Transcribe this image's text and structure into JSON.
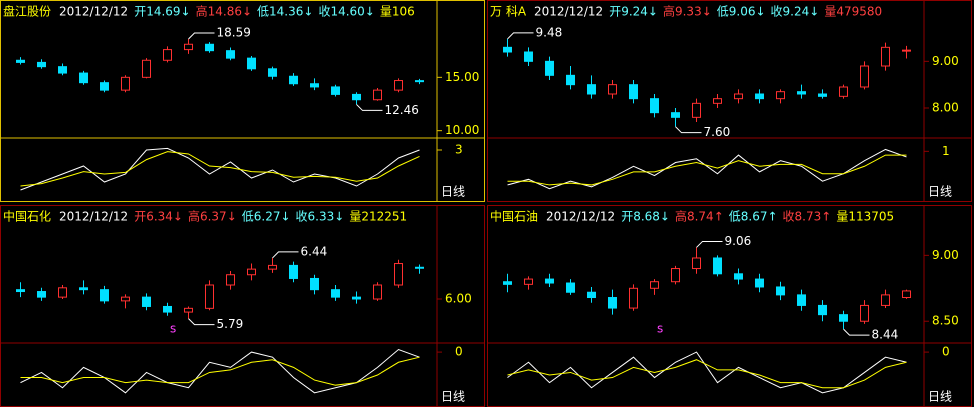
{
  "panels": [
    {
      "name": "盘江股份",
      "date": "2012/12/12",
      "quotes": [
        {
          "text": "开14.69↓",
          "color": "#66ffff"
        },
        {
          "text": "高14.86↓",
          "color": "#ff4040"
        },
        {
          "text": "低14.36↓",
          "color": "#66ffff"
        },
        {
          "text": "收14.60↓",
          "color": "#66ffff"
        },
        {
          "text": "量106",
          "color": "#ffff00"
        }
      ],
      "ylim": [
        9.5,
        20
      ],
      "yticks": [
        {
          "value": 10,
          "label": "10.00"
        },
        {
          "value": 15,
          "label": "15.00"
        }
      ],
      "max_label": "18.59",
      "min_label": "12.46",
      "candles": [
        [
          16.6,
          16.9,
          16.2,
          16.4
        ],
        [
          16.4,
          16.7,
          15.8,
          16.0
        ],
        [
          16.0,
          16.3,
          15.2,
          15.4
        ],
        [
          15.4,
          15.6,
          14.3,
          14.5
        ],
        [
          14.5,
          14.7,
          13.6,
          13.8
        ],
        [
          13.8,
          15.2,
          13.6,
          15.0
        ],
        [
          15.0,
          16.8,
          14.9,
          16.6
        ],
        [
          16.6,
          17.9,
          16.4,
          17.6
        ],
        [
          17.6,
          18.59,
          17.2,
          18.1
        ],
        [
          18.1,
          18.3,
          17.3,
          17.5
        ],
        [
          17.5,
          17.8,
          16.6,
          16.8
        ],
        [
          16.8,
          17.0,
          15.6,
          15.8
        ],
        [
          15.8,
          16.0,
          14.8,
          15.1
        ],
        [
          15.1,
          15.4,
          14.2,
          14.4
        ],
        [
          14.4,
          14.9,
          13.8,
          14.1
        ],
        [
          14.1,
          14.3,
          13.2,
          13.4
        ],
        [
          13.4,
          13.6,
          12.46,
          12.9
        ],
        [
          12.9,
          14.0,
          12.8,
          13.8
        ],
        [
          13.8,
          14.9,
          13.6,
          14.7
        ],
        [
          14.69,
          14.86,
          14.36,
          14.6
        ]
      ],
      "osc": {
        "ylim": [
          -3,
          4
        ],
        "ticks": [
          3
        ],
        "white": [
          -2,
          -1,
          0,
          1,
          -1,
          0,
          3,
          3.2,
          2,
          0,
          1.5,
          -0.5,
          0.5,
          -1,
          0,
          -0.5,
          -1.5,
          0,
          2,
          3
        ],
        "yellow": [
          -1.5,
          -1.2,
          -0.5,
          0.3,
          0,
          0.2,
          1.8,
          2.8,
          2.5,
          1,
          0.8,
          0.3,
          0.2,
          -0.4,
          -0.3,
          -0.4,
          -0.9,
          -0.5,
          1,
          2.2
        ]
      },
      "period": "日线"
    },
    {
      "name": "万  科A",
      "date": "2012/12/12",
      "quotes": [
        {
          "text": "开9.24↓",
          "color": "#66ffff"
        },
        {
          "text": "高9.33↓",
          "color": "#ff4040"
        },
        {
          "text": "低9.06↓",
          "color": "#66ffff"
        },
        {
          "text": "收9.24↓",
          "color": "#66ffff"
        },
        {
          "text": "量479580",
          "color": "#ff4040"
        }
      ],
      "ylim": [
        7.4,
        9.8
      ],
      "yticks": [
        {
          "value": 8,
          "label": "8.00"
        },
        {
          "value": 9,
          "label": "9.00"
        }
      ],
      "max_label": "9.48",
      "min_label": "7.60",
      "candles": [
        [
          9.3,
          9.48,
          9.1,
          9.2
        ],
        [
          9.2,
          9.3,
          8.9,
          9.0
        ],
        [
          9.0,
          9.1,
          8.6,
          8.7
        ],
        [
          8.7,
          8.9,
          8.4,
          8.5
        ],
        [
          8.5,
          8.7,
          8.2,
          8.3
        ],
        [
          8.3,
          8.6,
          8.2,
          8.5
        ],
        [
          8.5,
          8.6,
          8.1,
          8.2
        ],
        [
          8.2,
          8.3,
          7.8,
          7.9
        ],
        [
          7.9,
          8.0,
          7.6,
          7.8
        ],
        [
          7.8,
          8.2,
          7.7,
          8.1
        ],
        [
          8.1,
          8.3,
          8.0,
          8.2
        ],
        [
          8.2,
          8.4,
          8.1,
          8.3
        ],
        [
          8.3,
          8.4,
          8.1,
          8.2
        ],
        [
          8.2,
          8.4,
          8.1,
          8.35
        ],
        [
          8.35,
          8.5,
          8.2,
          8.3
        ],
        [
          8.3,
          8.4,
          8.2,
          8.25
        ],
        [
          8.25,
          8.5,
          8.2,
          8.45
        ],
        [
          8.45,
          9.0,
          8.4,
          8.9
        ],
        [
          8.9,
          9.4,
          8.8,
          9.3
        ],
        [
          9.24,
          9.33,
          9.06,
          9.24
        ]
      ],
      "osc": {
        "ylim": [
          -1.5,
          1.5
        ],
        "ticks": [
          1
        ],
        "white": [
          -0.8,
          -0.5,
          -1,
          -0.6,
          -0.9,
          -0.4,
          0.2,
          -0.3,
          0.4,
          0.6,
          -0.2,
          0.8,
          -0.1,
          0.5,
          0.2,
          -0.6,
          -0.2,
          0.5,
          1.1,
          0.7
        ],
        "yellow": [
          -0.6,
          -0.6,
          -0.8,
          -0.7,
          -0.8,
          -0.5,
          -0.1,
          -0.1,
          0.2,
          0.4,
          0.1,
          0.5,
          0.2,
          0.3,
          0.3,
          -0.2,
          -0.2,
          0.2,
          0.8,
          0.8
        ]
      },
      "period": "日线"
    },
    {
      "name": "中国石化",
      "date": "2012/12/12",
      "quotes": [
        {
          "text": "开6.34↓",
          "color": "#ff4040"
        },
        {
          "text": "高6.37↓",
          "color": "#ff4040"
        },
        {
          "text": "低6.27↓",
          "color": "#66ffff"
        },
        {
          "text": "收6.33↓",
          "color": "#66ffff"
        },
        {
          "text": "量212251",
          "color": "#ffff00"
        }
      ],
      "ylim": [
        5.55,
        6.75
      ],
      "yticks": [
        {
          "value": 6,
          "label": "6.00"
        }
      ],
      "max_label": "6.44",
      "min_label": "5.79",
      "marker": "s",
      "candles": [
        [
          6.1,
          6.18,
          6.02,
          6.08
        ],
        [
          6.08,
          6.12,
          5.98,
          6.02
        ],
        [
          6.02,
          6.15,
          6.0,
          6.12
        ],
        [
          6.12,
          6.2,
          6.05,
          6.1
        ],
        [
          6.1,
          6.14,
          5.95,
          5.98
        ],
        [
          5.98,
          6.05,
          5.9,
          6.02
        ],
        [
          6.02,
          6.06,
          5.88,
          5.92
        ],
        [
          5.92,
          5.96,
          5.82,
          5.86
        ],
        [
          5.86,
          5.92,
          5.79,
          5.9
        ],
        [
          5.9,
          6.2,
          5.88,
          6.15
        ],
        [
          6.15,
          6.3,
          6.1,
          6.26
        ],
        [
          6.26,
          6.38,
          6.2,
          6.32
        ],
        [
          6.32,
          6.44,
          6.28,
          6.36
        ],
        [
          6.36,
          6.4,
          6.18,
          6.22
        ],
        [
          6.22,
          6.26,
          6.05,
          6.1
        ],
        [
          6.1,
          6.15,
          5.98,
          6.02
        ],
        [
          6.02,
          6.08,
          5.95,
          6.0
        ],
        [
          6.0,
          6.18,
          5.98,
          6.15
        ],
        [
          6.15,
          6.42,
          6.12,
          6.38
        ],
        [
          6.34,
          6.37,
          6.27,
          6.33
        ]
      ],
      "osc": {
        "ylim": [
          -1,
          0.1
        ],
        "ticks": [
          0
        ],
        "white": [
          -0.6,
          -0.4,
          -0.7,
          -0.3,
          -0.5,
          -0.8,
          -0.4,
          -0.6,
          -0.7,
          -0.2,
          -0.3,
          0,
          -0.1,
          -0.5,
          -0.8,
          -0.7,
          -0.6,
          -0.3,
          0.05,
          -0.1
        ],
        "yellow": [
          -0.5,
          -0.5,
          -0.6,
          -0.5,
          -0.5,
          -0.6,
          -0.55,
          -0.6,
          -0.6,
          -0.4,
          -0.35,
          -0.2,
          -0.15,
          -0.3,
          -0.55,
          -0.65,
          -0.6,
          -0.45,
          -0.2,
          -0.1
        ]
      },
      "period": "日线"
    },
    {
      "name": "中国石油",
      "date": "2012/12/12",
      "quotes": [
        {
          "text": "开8.68↓",
          "color": "#66ffff"
        },
        {
          "text": "高8.74↑",
          "color": "#ff4040"
        },
        {
          "text": "低8.67↑",
          "color": "#66ffff"
        },
        {
          "text": "收8.73↑",
          "color": "#ff4040"
        },
        {
          "text": "量113705",
          "color": "#ffff00"
        }
      ],
      "ylim": [
        8.35,
        9.2
      ],
      "yticks": [
        {
          "value": 8.5,
          "label": "8.50"
        },
        {
          "value": 9,
          "label": "9.00"
        }
      ],
      "max_label": "9.06",
      "min_label": "8.44",
      "marker": "s",
      "candles": [
        [
          8.8,
          8.86,
          8.72,
          8.78
        ],
        [
          8.78,
          8.84,
          8.74,
          8.82
        ],
        [
          8.82,
          8.86,
          8.76,
          8.79
        ],
        [
          8.79,
          8.82,
          8.7,
          8.72
        ],
        [
          8.72,
          8.76,
          8.64,
          8.68
        ],
        [
          8.68,
          8.74,
          8.55,
          8.6
        ],
        [
          8.6,
          8.78,
          8.58,
          8.75
        ],
        [
          8.75,
          8.82,
          8.7,
          8.8
        ],
        [
          8.8,
          8.92,
          8.78,
          8.9
        ],
        [
          8.9,
          9.06,
          8.86,
          8.98
        ],
        [
          8.98,
          9.0,
          8.84,
          8.86
        ],
        [
          8.86,
          8.9,
          8.78,
          8.82
        ],
        [
          8.82,
          8.86,
          8.72,
          8.76
        ],
        [
          8.76,
          8.8,
          8.66,
          8.7
        ],
        [
          8.7,
          8.74,
          8.58,
          8.62
        ],
        [
          8.62,
          8.66,
          8.5,
          8.55
        ],
        [
          8.55,
          8.58,
          8.44,
          8.5
        ],
        [
          8.5,
          8.66,
          8.48,
          8.62
        ],
        [
          8.62,
          8.74,
          8.6,
          8.7
        ],
        [
          8.68,
          8.74,
          8.67,
          8.73
        ]
      ],
      "osc": {
        "ylim": [
          -1,
          0.1
        ],
        "ticks": [
          0
        ],
        "white": [
          -0.5,
          -0.2,
          -0.6,
          -0.3,
          -0.7,
          -0.4,
          -0.1,
          -0.5,
          -0.2,
          0,
          -0.6,
          -0.3,
          -0.5,
          -0.7,
          -0.6,
          -0.8,
          -0.7,
          -0.4,
          -0.1,
          -0.2
        ],
        "yellow": [
          -0.45,
          -0.35,
          -0.45,
          -0.4,
          -0.55,
          -0.5,
          -0.3,
          -0.4,
          -0.3,
          -0.15,
          -0.35,
          -0.35,
          -0.45,
          -0.6,
          -0.6,
          -0.7,
          -0.7,
          -0.55,
          -0.3,
          -0.2
        ]
      },
      "period": "日线"
    }
  ]
}
